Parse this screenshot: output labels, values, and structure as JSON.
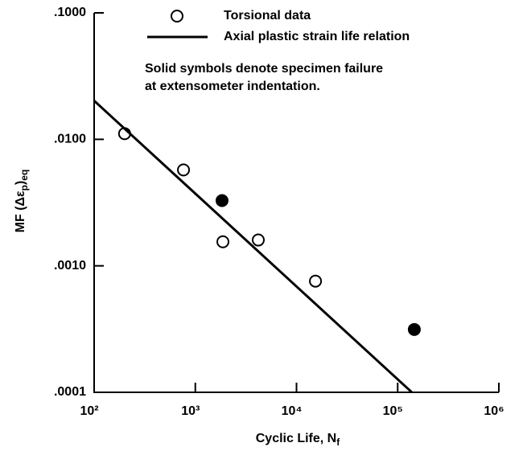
{
  "chart_data": {
    "type": "scatter",
    "xlabel": [
      "Cyclic Life, N",
      "f"
    ],
    "ylabel": [
      "MF (Δε",
      "p",
      ")",
      "eq"
    ],
    "annotation": [
      "Solid symbols denote specimen failure",
      "at extensometer indentation."
    ],
    "xscale": "log",
    "yscale": "log",
    "xlim": [
      100,
      1000000
    ],
    "ylim": [
      0.0001,
      0.1
    ],
    "xticks": [
      {
        "value": 100,
        "label": "10²"
      },
      {
        "value": 1000,
        "label": "10³"
      },
      {
        "value": 10000,
        "label": "10⁴"
      },
      {
        "value": 100000,
        "label": "10⁵"
      },
      {
        "value": 1000000,
        "label": "10⁶"
      }
    ],
    "yticks": [
      {
        "value": 0.0001,
        "label": ".0001"
      },
      {
        "value": 0.001,
        "label": ".0010"
      },
      {
        "value": 0.01,
        "label": ".0100"
      },
      {
        "value": 0.1,
        "label": ".1000"
      }
    ],
    "series": [
      {
        "name": "Torsional data",
        "color": "#000",
        "marker": "circle",
        "x": [
          200,
          764,
          1837,
          1873,
          4190,
          15400,
          146000
        ],
        "values": [
          0.0111,
          0.00573,
          0.00328,
          0.00155,
          0.0016,
          0.000757,
          0.000314
        ],
        "filled": [
          false,
          false,
          true,
          false,
          false,
          false,
          true
        ]
      },
      {
        "name": "Axial plastic strain life relation",
        "color": "#000",
        "marker": "line",
        "x": [
          100,
          138000
        ],
        "values": [
          0.0202,
          0.0001
        ]
      }
    ]
  }
}
